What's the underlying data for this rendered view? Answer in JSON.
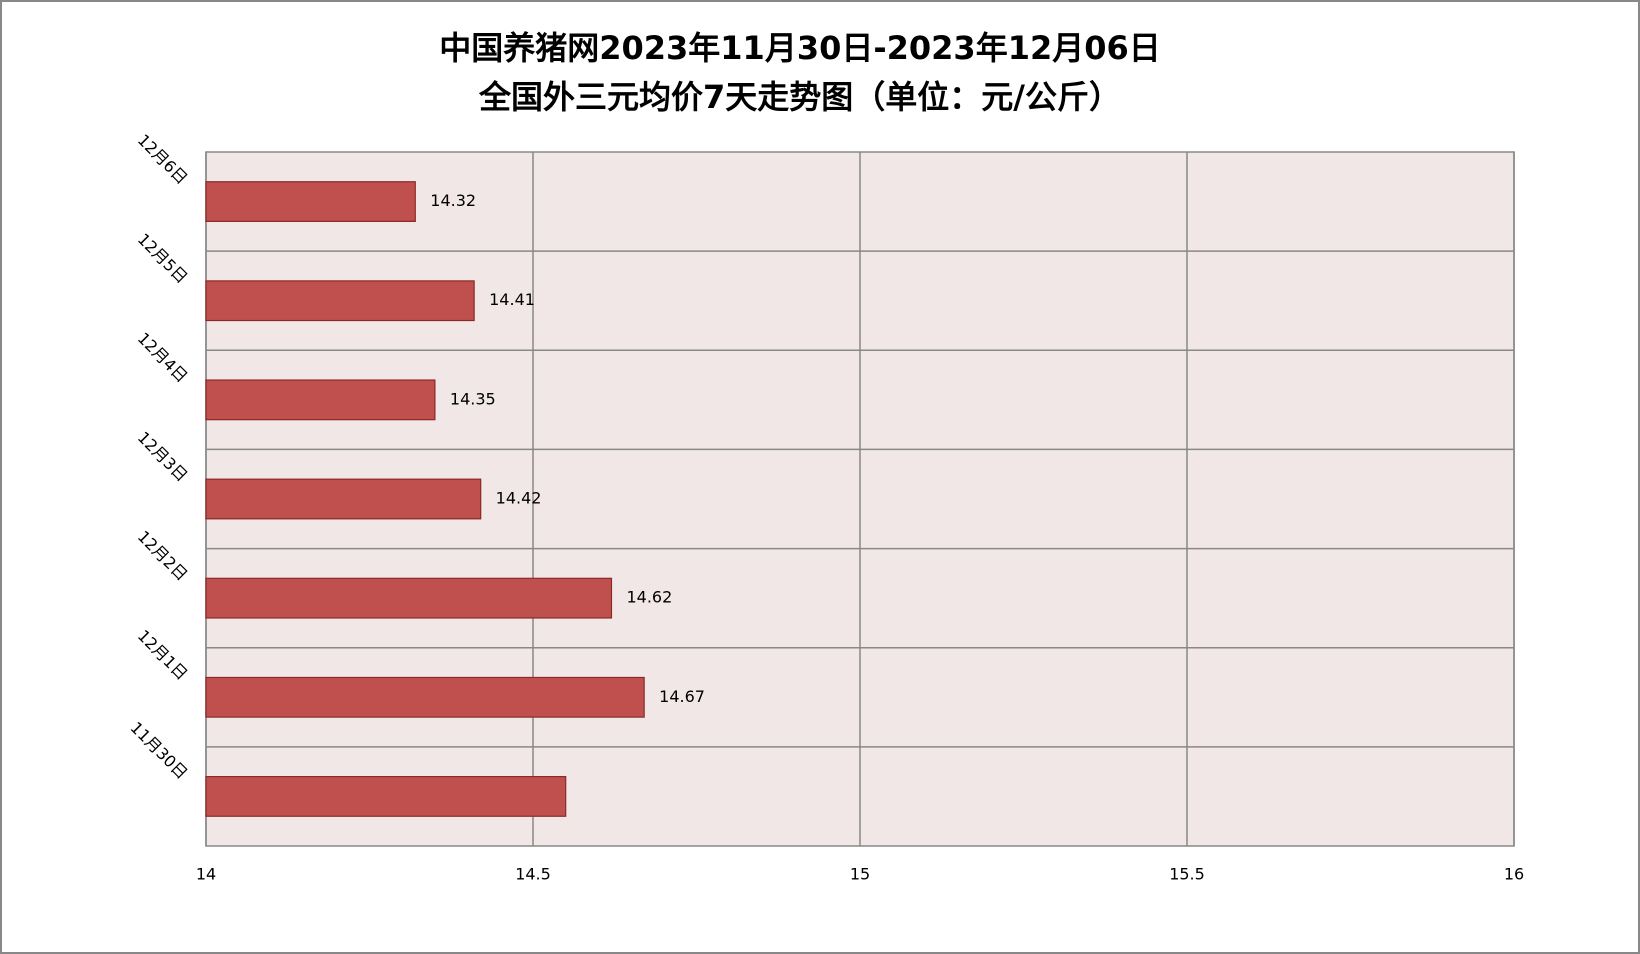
{
  "chart_data": {
    "type": "barh",
    "title": [
      "中国养猪网2023年11月30日-2023年12月06日",
      "全国外三元均价7天走势图（单位：元/公斤）"
    ],
    "categories": [
      "11月30日",
      "12月1日",
      "12月2日",
      "12月3日",
      "12月4日",
      "12月5日",
      "12月6日"
    ],
    "values": [
      14.55,
      14.67,
      14.62,
      14.42,
      14.35,
      14.41,
      14.32
    ],
    "value_labels": [
      null,
      "14.67",
      "14.62",
      "14.42",
      "14.35",
      "14.41",
      "14.32"
    ],
    "color": "#c0504d",
    "xlim": [
      14,
      16
    ],
    "xticks": [
      14,
      14.5,
      15,
      15.5,
      16
    ],
    "grid": true
  }
}
